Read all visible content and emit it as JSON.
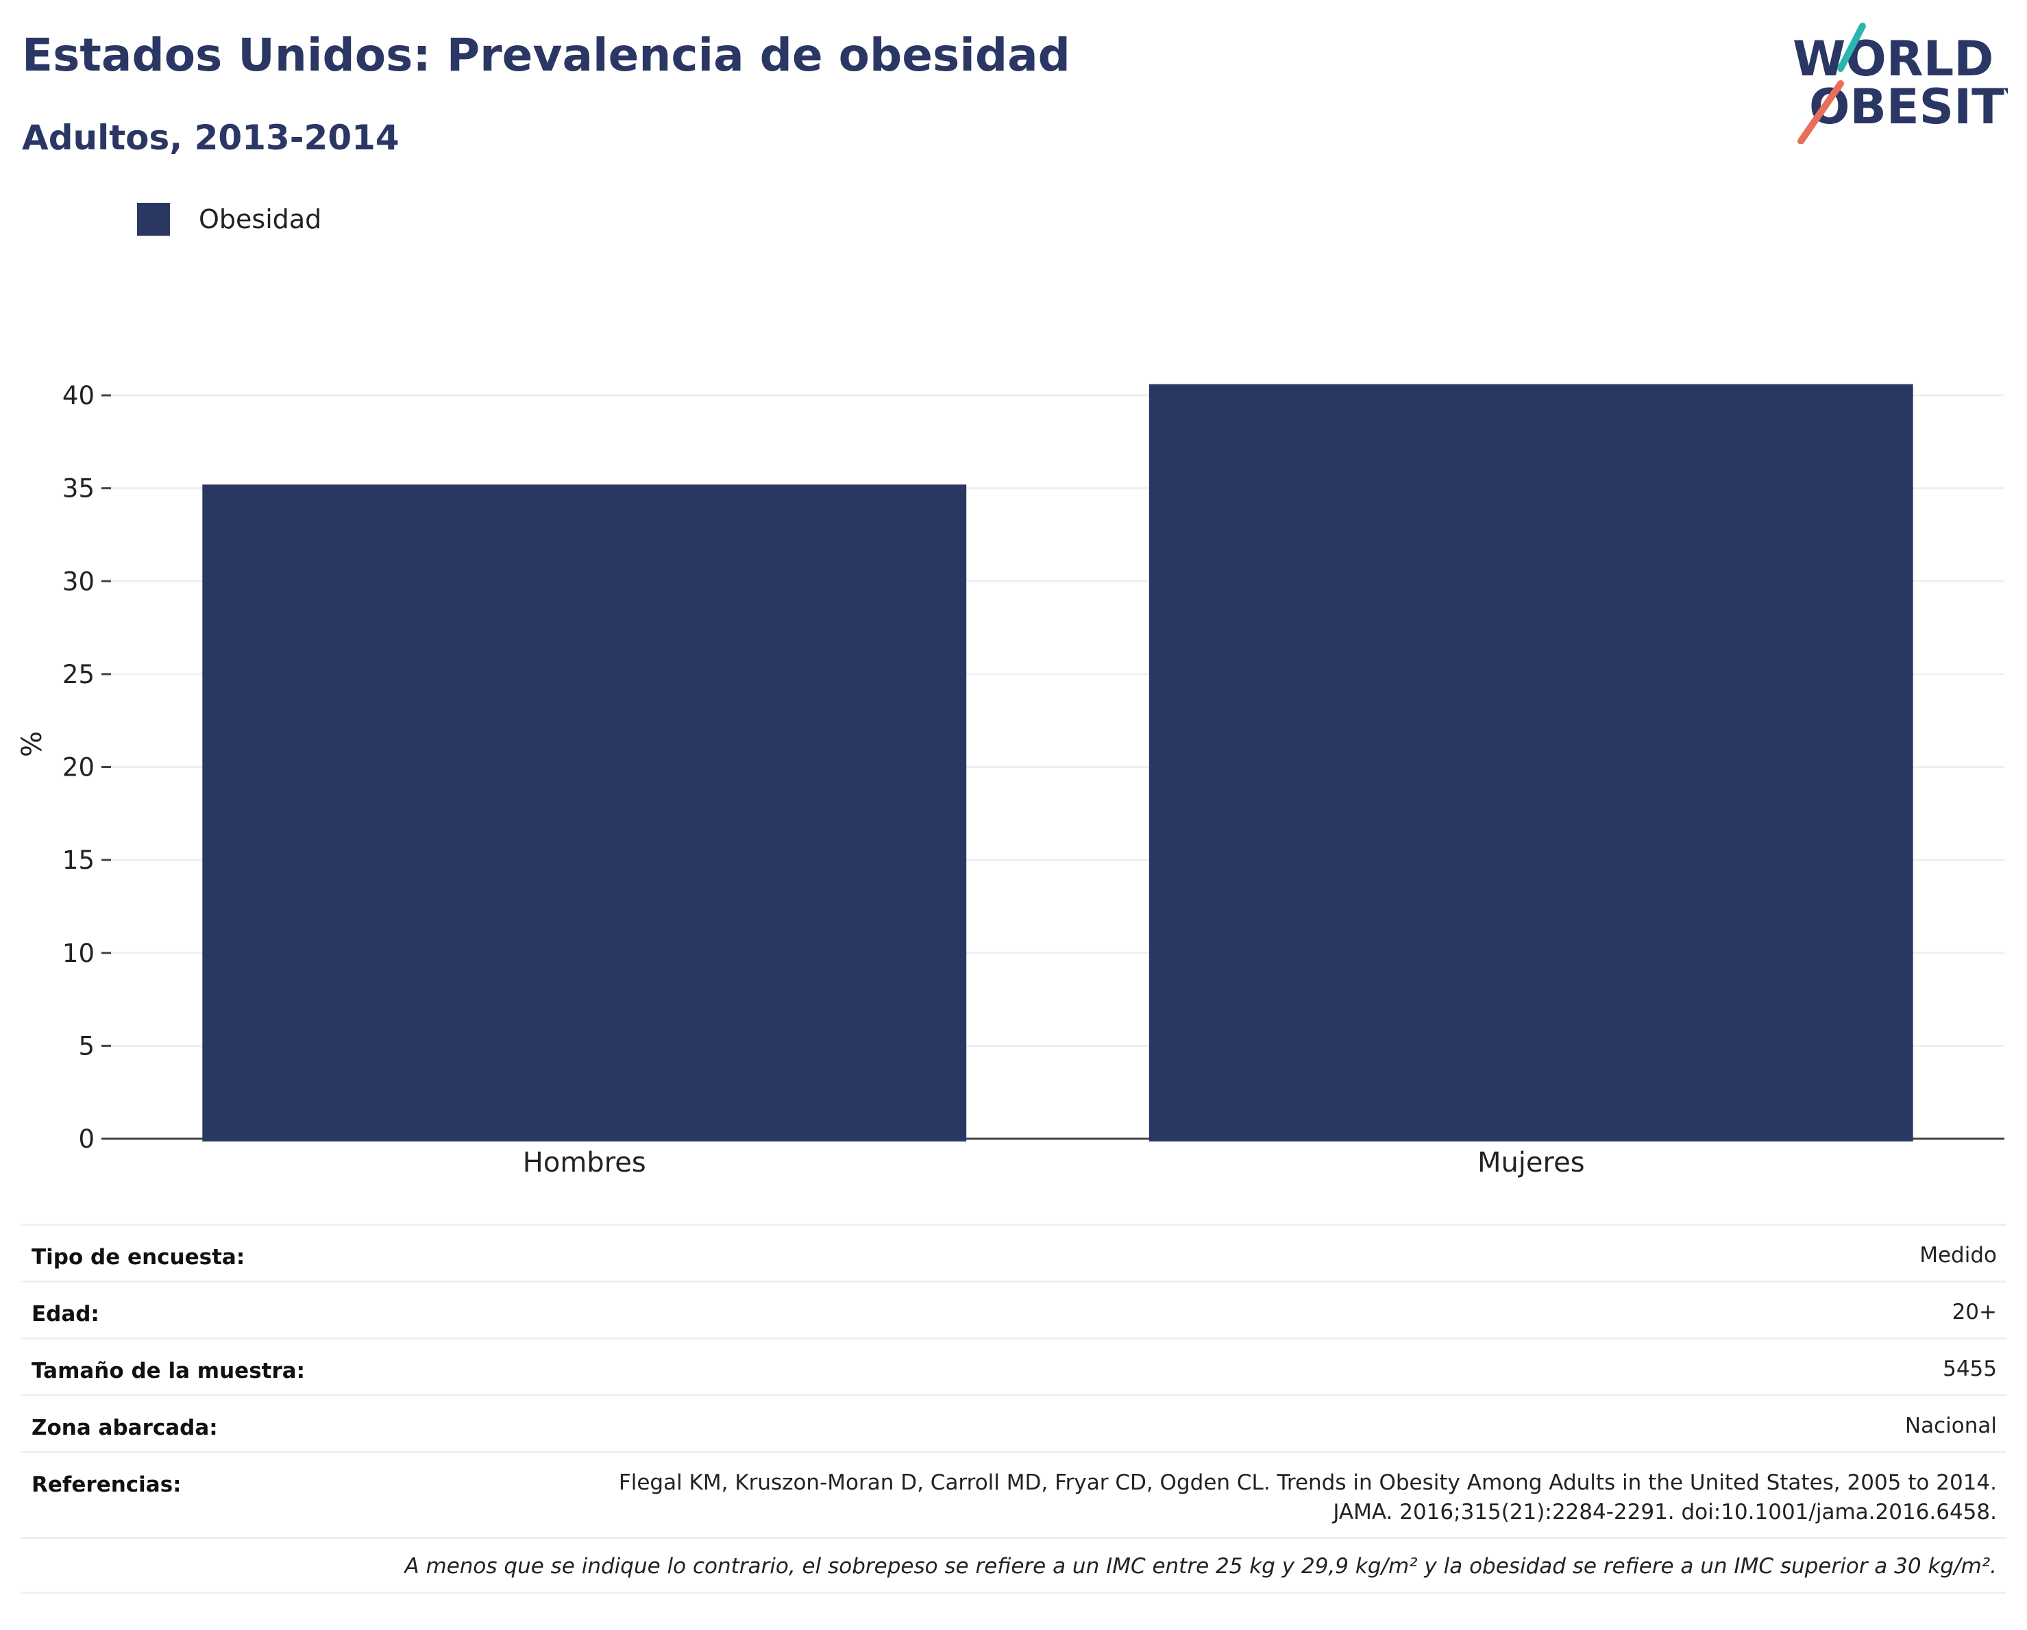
{
  "title": "Estados Unidos: Prevalencia de obesidad",
  "subtitle": "Adultos, 2013-2014",
  "logo": {
    "line1": "WORLD",
    "line2": "OBESITY",
    "accent_colors": [
      "#2bb5b0",
      "#e76f5c"
    ]
  },
  "colors": {
    "bar": "#2b3763",
    "text": "#2a3663",
    "grid": "#eceff4"
  },
  "chart_data": {
    "type": "bar",
    "categories": [
      "Hombres",
      "Mujeres"
    ],
    "series": [
      {
        "name": "Obesidad",
        "values": [
          35.2,
          40.6
        ]
      }
    ],
    "ylabel": "%",
    "xlabel": "",
    "ylim": [
      0,
      42
    ],
    "yticks": [
      0,
      5,
      10,
      15,
      20,
      25,
      30,
      35,
      40
    ],
    "grid": true,
    "legend_position": "top-left"
  },
  "info": {
    "rows": [
      {
        "label": "Tipo de encuesta:",
        "value": "Medido"
      },
      {
        "label": "Edad:",
        "value": "20+"
      },
      {
        "label": "Tamaño de la muestra:",
        "value": "5455"
      },
      {
        "label": "Zona abarcada:",
        "value": "Nacional"
      }
    ],
    "references_label": "Referencias:",
    "references": [
      "Flegal KM, Kruszon-Moran D, Carroll MD, Fryar CD, Ogden CL. Trends in Obesity Among Adults in the United States, 2005 to 2014.",
      "JAMA. 2016;315(21):2284-2291. doi:10.1001/jama.2016.6458."
    ],
    "note": "A menos que se indique lo contrario, el sobrepeso se refiere a un IMC entre 25 kg y 29,9 kg/m² y la obesidad se refiere a un IMC superior a 30 kg/m²."
  }
}
